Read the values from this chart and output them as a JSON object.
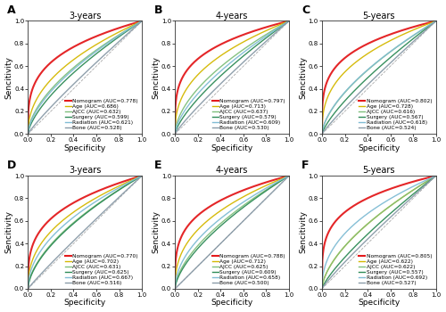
{
  "panels": [
    {
      "label": "A",
      "title": "3-years",
      "row": 0,
      "col": 0,
      "curves": [
        {
          "name": "Nomogram (AUC=0.778)",
          "auc": 0.778,
          "color": "#e31a1c",
          "lw": 1.5
        },
        {
          "name": "Age (AUC=0.686)",
          "auc": 0.686,
          "color": "#d4b800",
          "lw": 1.0
        },
        {
          "name": "AJCC (AUC=0.632)",
          "auc": 0.632,
          "color": "#7fbf7b",
          "lw": 1.0
        },
        {
          "name": "Surgery (AUC=0.599)",
          "auc": 0.599,
          "color": "#2e8b57",
          "lw": 1.0
        },
        {
          "name": "Radiation (AUC=0.621)",
          "auc": 0.621,
          "color": "#80bcd4",
          "lw": 1.0
        },
        {
          "name": "Bone (AUC=0.528)",
          "auc": 0.528,
          "color": "#8a9ba8",
          "lw": 1.0
        }
      ]
    },
    {
      "label": "B",
      "title": "4-years",
      "row": 0,
      "col": 1,
      "curves": [
        {
          "name": "Nomogram (AUC=0.797)",
          "auc": 0.797,
          "color": "#e31a1c",
          "lw": 1.5
        },
        {
          "name": "Age (AUC=0.713)",
          "auc": 0.713,
          "color": "#d4b800",
          "lw": 1.0
        },
        {
          "name": "AJCC (AUC=0.637)",
          "auc": 0.637,
          "color": "#7fbf7b",
          "lw": 1.0
        },
        {
          "name": "Surgery (AUC=0.579)",
          "auc": 0.579,
          "color": "#2e8b57",
          "lw": 1.0
        },
        {
          "name": "Radiation (AUC=0.609)",
          "auc": 0.609,
          "color": "#80bcd4",
          "lw": 1.0
        },
        {
          "name": "Bone (AUC=0.530)",
          "auc": 0.53,
          "color": "#8a9ba8",
          "lw": 1.0
        }
      ]
    },
    {
      "label": "C",
      "title": "5-years",
      "row": 0,
      "col": 2,
      "curves": [
        {
          "name": "Nomogram (AUC=0.802)",
          "auc": 0.802,
          "color": "#e31a1c",
          "lw": 1.5
        },
        {
          "name": "Age (AUC=0.728)",
          "auc": 0.728,
          "color": "#d4b800",
          "lw": 1.0
        },
        {
          "name": "AJCC (AUC=0.616)",
          "auc": 0.616,
          "color": "#7fbf7b",
          "lw": 1.0
        },
        {
          "name": "Surgery (AUC=0.567)",
          "auc": 0.567,
          "color": "#2e8b57",
          "lw": 1.0
        },
        {
          "name": "Radiation (AUC=0.618)",
          "auc": 0.618,
          "color": "#80bcd4",
          "lw": 1.0
        },
        {
          "name": "Bone (AUC=0.524)",
          "auc": 0.524,
          "color": "#8a9ba8",
          "lw": 1.0
        }
      ]
    },
    {
      "label": "D",
      "title": "3-years",
      "row": 1,
      "col": 0,
      "curves": [
        {
          "name": "Nomogram (AUC=0.770)",
          "auc": 0.77,
          "color": "#e31a1c",
          "lw": 1.5
        },
        {
          "name": "Age (AUC=0.702)",
          "auc": 0.702,
          "color": "#d4b800",
          "lw": 1.0
        },
        {
          "name": "AJCC (AUC=0.631)",
          "auc": 0.631,
          "color": "#7fbf7b",
          "lw": 1.0
        },
        {
          "name": "Surgery (AUC=0.625)",
          "auc": 0.625,
          "color": "#2e8b57",
          "lw": 1.0
        },
        {
          "name": "Radiation (AUC=0.667)",
          "auc": 0.667,
          "color": "#80bcd4",
          "lw": 1.0
        },
        {
          "name": "Bone (AUC=0.516)",
          "auc": 0.516,
          "color": "#8a9ba8",
          "lw": 1.0
        }
      ]
    },
    {
      "label": "E",
      "title": "4-years",
      "row": 1,
      "col": 1,
      "curves": [
        {
          "name": "Nomogram (AUC=0.788)",
          "auc": 0.788,
          "color": "#e31a1c",
          "lw": 1.5
        },
        {
          "name": "Age (AUC=0.712)",
          "auc": 0.712,
          "color": "#d4b800",
          "lw": 1.0
        },
        {
          "name": "AJCC (AUC=0.625)",
          "auc": 0.625,
          "color": "#7fbf7b",
          "lw": 1.0
        },
        {
          "name": "Surgery (AUC=0.609)",
          "auc": 0.609,
          "color": "#2e8b57",
          "lw": 1.0
        },
        {
          "name": "Radiation (AUC=0.658)",
          "auc": 0.658,
          "color": "#80bcd4",
          "lw": 1.0
        },
        {
          "name": "Bone (AUC=0.500)",
          "auc": 0.5,
          "color": "#8a9ba8",
          "lw": 1.0
        }
      ]
    },
    {
      "label": "F",
      "title": "5-years",
      "row": 1,
      "col": 2,
      "curves": [
        {
          "name": "Nomogram (AUC=0.805)",
          "auc": 0.805,
          "color": "#e31a1c",
          "lw": 1.5
        },
        {
          "name": "Age (AUC=0.622)",
          "auc": 0.622,
          "color": "#d4b800",
          "lw": 1.0
        },
        {
          "name": "AJCC (AUC=0.622)",
          "auc": 0.622,
          "color": "#7fbf7b",
          "lw": 1.0
        },
        {
          "name": "Surgery (AUC=0.557)",
          "auc": 0.557,
          "color": "#2e8b57",
          "lw": 1.0
        },
        {
          "name": "Radiation (AUC=0.692)",
          "auc": 0.692,
          "color": "#80bcd4",
          "lw": 1.0
        },
        {
          "name": "Bone (AUC=0.527)",
          "auc": 0.527,
          "color": "#8a9ba8",
          "lw": 1.0
        }
      ]
    }
  ],
  "xlabel": "Specificity",
  "ylabel": "Sencitivity",
  "tick_vals": [
    0.0,
    0.2,
    0.4,
    0.6,
    0.8,
    1.0
  ],
  "background_color": "#ffffff",
  "diag_color": "#aaaaaa",
  "legend_fontsize": 4.2,
  "axis_label_fontsize": 6.5,
  "tick_fontsize": 5.0,
  "title_fontsize": 7.0,
  "panel_label_fontsize": 9.0
}
